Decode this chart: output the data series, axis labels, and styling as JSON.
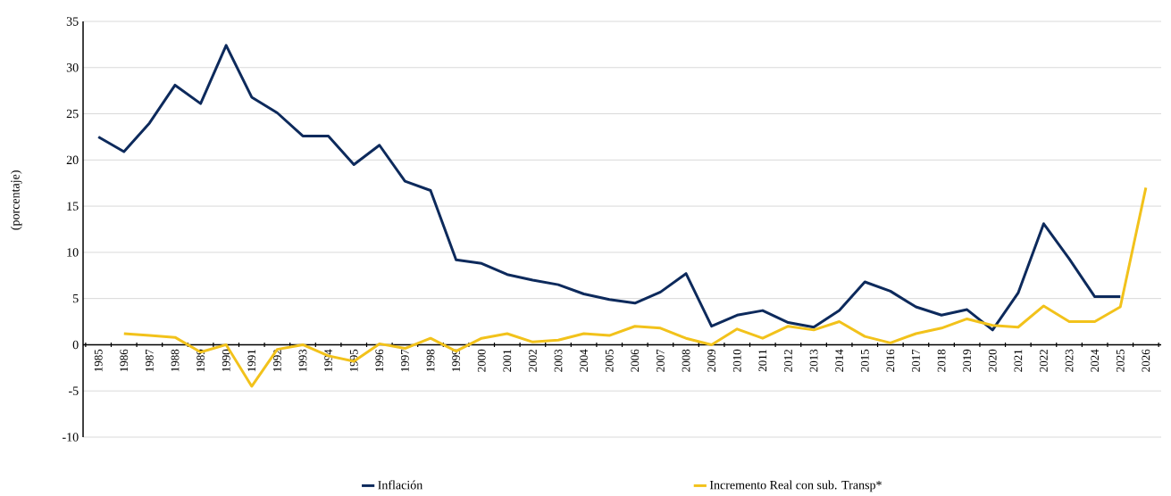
{
  "chart_data": {
    "type": "line",
    "ylabel": "(porcentaje)",
    "categories": [
      "1985",
      "1986",
      "1987",
      "1988",
      "1989",
      "1990",
      "1991",
      "1992",
      "1993",
      "1994",
      "1995",
      "1996",
      "1997",
      "1998",
      "1999",
      "2000",
      "2001",
      "2002",
      "2003",
      "2004",
      "2005",
      "2006",
      "2007",
      "2008",
      "2009",
      "2010",
      "2011",
      "2012",
      "2013",
      "2014",
      "2015",
      "2016",
      "2017",
      "2018",
      "2019",
      "2020",
      "2021",
      "2022",
      "2023",
      "2024",
      "2025",
      "2026"
    ],
    "series": [
      {
        "name": "Inflación",
        "color": "#0d2a5c",
        "values": [
          22.5,
          20.9,
          24.0,
          28.1,
          26.1,
          32.4,
          26.8,
          25.1,
          22.6,
          22.6,
          19.5,
          21.6,
          17.7,
          16.7,
          9.2,
          8.8,
          7.6,
          7.0,
          6.5,
          5.5,
          4.9,
          4.5,
          5.7,
          7.7,
          2.0,
          3.2,
          3.7,
          2.4,
          1.9,
          3.7,
          6.8,
          5.8,
          4.1,
          3.2,
          3.8,
          1.6,
          5.6,
          13.1,
          9.3,
          5.2,
          5.2,
          null
        ]
      },
      {
        "name": "Incremento Real con sub. Transp*",
        "color": "#f2c21b",
        "values": [
          null,
          1.2,
          1.0,
          0.8,
          -0.8,
          0.0,
          -4.5,
          -0.5,
          0.0,
          -1.2,
          -1.8,
          0.1,
          -0.4,
          0.7,
          -0.7,
          0.7,
          1.2,
          0.3,
          0.5,
          1.2,
          1.0,
          2.0,
          1.8,
          0.7,
          0.0,
          1.7,
          0.7,
          2.0,
          1.6,
          2.5,
          0.9,
          0.2,
          1.2,
          1.8,
          2.8,
          2.1,
          1.9,
          4.2,
          2.5,
          2.5,
          4.1,
          17.0
        ]
      }
    ],
    "ylim": [
      -10,
      35
    ],
    "yticks": [
      -10,
      -5,
      0,
      5,
      10,
      15,
      20,
      25,
      30,
      35
    ],
    "grid": "y",
    "legend": "bottom",
    "marker": "none",
    "line_style": "solid"
  }
}
